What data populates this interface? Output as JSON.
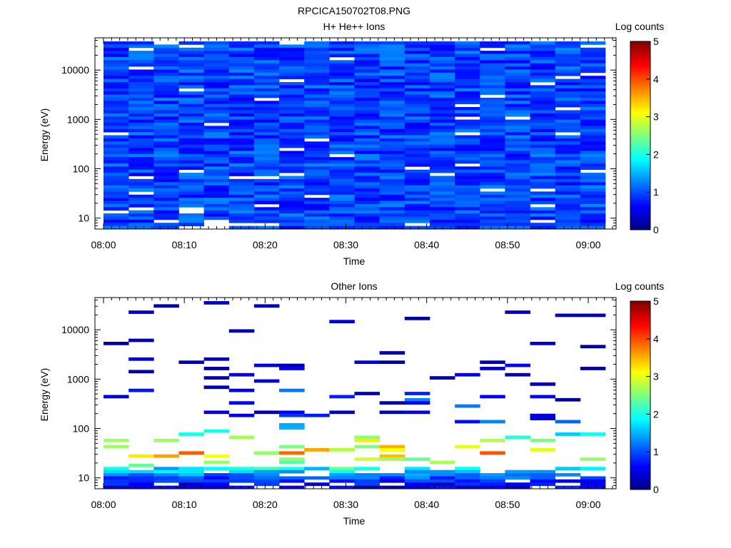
{
  "figure": {
    "title": "RPCICA150702T08.PNG"
  },
  "chart_data": [
    {
      "type": "heatmap",
      "title": "H+ He++ Ions",
      "xlabel": "Time",
      "ylabel": "Energy (eV)",
      "x_ticks": [
        "08:00",
        "08:10",
        "08:20",
        "08:30",
        "08:40",
        "08:50",
        "09:00"
      ],
      "y_ticks": [
        "10",
        "100",
        "1000",
        "10000"
      ],
      "y_scale": "log",
      "ylim": [
        6,
        45000
      ],
      "xlim_minutes": [
        0,
        63
      ],
      "colorbar": {
        "label": "Log counts",
        "range": [
          0,
          5
        ],
        "ticks": [
          "0",
          "1",
          "2",
          "3",
          "4",
          "5"
        ]
      },
      "seed": 7,
      "profile": {
        "base": 0.95,
        "spread": 0.35,
        "peak": null,
        "blank_low": 0.12,
        "blank_high": 0.03
      }
    },
    {
      "type": "heatmap",
      "title": "Other Ions",
      "xlabel": "Time",
      "ylabel": "Energy (eV)",
      "x_ticks": [
        "08:00",
        "08:10",
        "08:20",
        "08:30",
        "08:40",
        "08:50",
        "09:00"
      ],
      "y_ticks": [
        "10",
        "100",
        "1000",
        "10000"
      ],
      "y_scale": "log",
      "ylim": [
        6,
        45000
      ],
      "xlim_minutes": [
        0,
        63
      ],
      "colorbar": {
        "label": "Log counts",
        "range": [
          0,
          5
        ],
        "ticks": [
          "0",
          "1",
          "2",
          "3",
          "4",
          "5"
        ]
      },
      "seed": 19,
      "profile": {
        "base": 0.25,
        "spread": 0.3,
        "peak": {
          "energy": 38,
          "value": 3.2,
          "width": 0.35
        },
        "blank_low": 0.2,
        "blank_high": 0.88
      }
    }
  ]
}
